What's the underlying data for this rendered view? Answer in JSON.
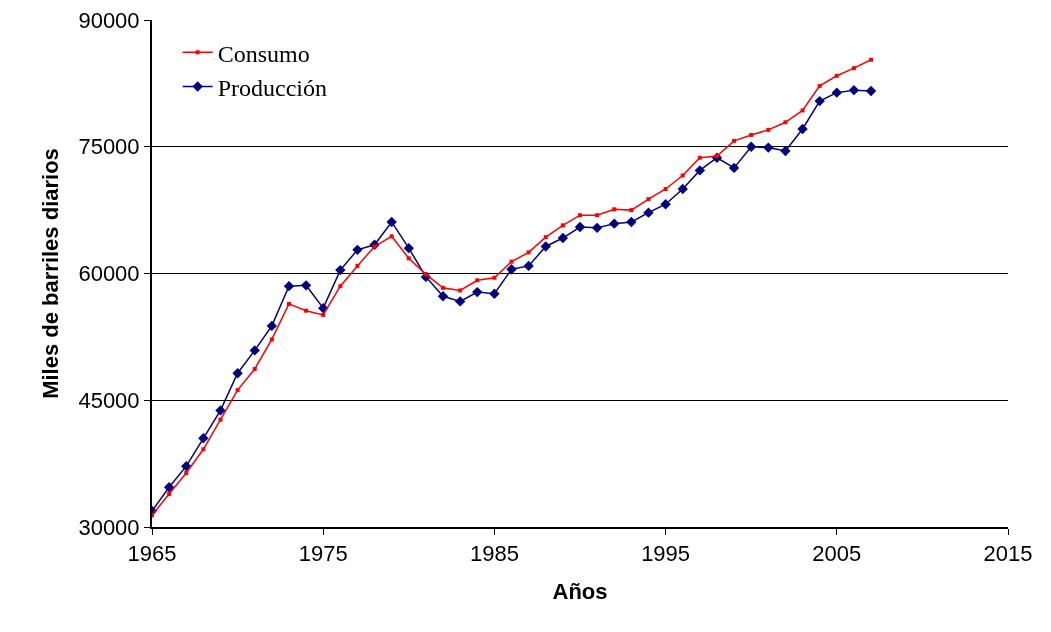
{
  "chart_data": {
    "type": "line",
    "xlabel": "Años",
    "ylabel": "Miles de barriles diarios",
    "x": [
      1965,
      1966,
      1967,
      1968,
      1969,
      1970,
      1971,
      1972,
      1973,
      1974,
      1975,
      1976,
      1977,
      1978,
      1979,
      1980,
      1981,
      1982,
      1983,
      1984,
      1985,
      1986,
      1987,
      1988,
      1989,
      1990,
      1991,
      1992,
      1993,
      1994,
      1995,
      1996,
      1997,
      1998,
      1999,
      2000,
      2001,
      2002,
      2003,
      2004,
      2005,
      2006,
      2007
    ],
    "series": [
      {
        "name": "Consumo",
        "color": "#ff0000",
        "marker": "square",
        "values": [
          31400,
          33900,
          36400,
          39200,
          42700,
          46200,
          48700,
          52200,
          56400,
          55600,
          55100,
          58500,
          60900,
          63200,
          64400,
          61800,
          59900,
          58300,
          58000,
          59200,
          59500,
          61400,
          62500,
          64300,
          65700,
          66900,
          66900,
          67600,
          67500,
          68800,
          70000,
          71600,
          73700,
          73900,
          75700,
          76400,
          77000,
          77900,
          79300,
          82200,
          83400,
          84300,
          85300
        ]
      },
      {
        "name": "Producción",
        "color": "#000080",
        "marker": "diamond",
        "values": [
          31900,
          34700,
          37200,
          40500,
          43800,
          48200,
          50900,
          53800,
          58500,
          58600,
          55900,
          60400,
          62800,
          63400,
          66100,
          63000,
          59600,
          57300,
          56700,
          57800,
          57600,
          60500,
          60900,
          63200,
          64200,
          65500,
          65400,
          65900,
          66100,
          67200,
          68200,
          70000,
          72200,
          73700,
          72500,
          75000,
          74900,
          74500,
          77100,
          80400,
          81400,
          81700,
          81600
        ]
      }
    ],
    "xlim": [
      1965,
      2015
    ],
    "xticks": [
      1965,
      1975,
      1985,
      1995,
      2005,
      2015
    ],
    "ylim": [
      30000,
      90000
    ],
    "yticks": [
      30000,
      45000,
      60000,
      75000,
      90000
    ],
    "grid": "y",
    "legend": "top left",
    "line_style": "solid"
  }
}
